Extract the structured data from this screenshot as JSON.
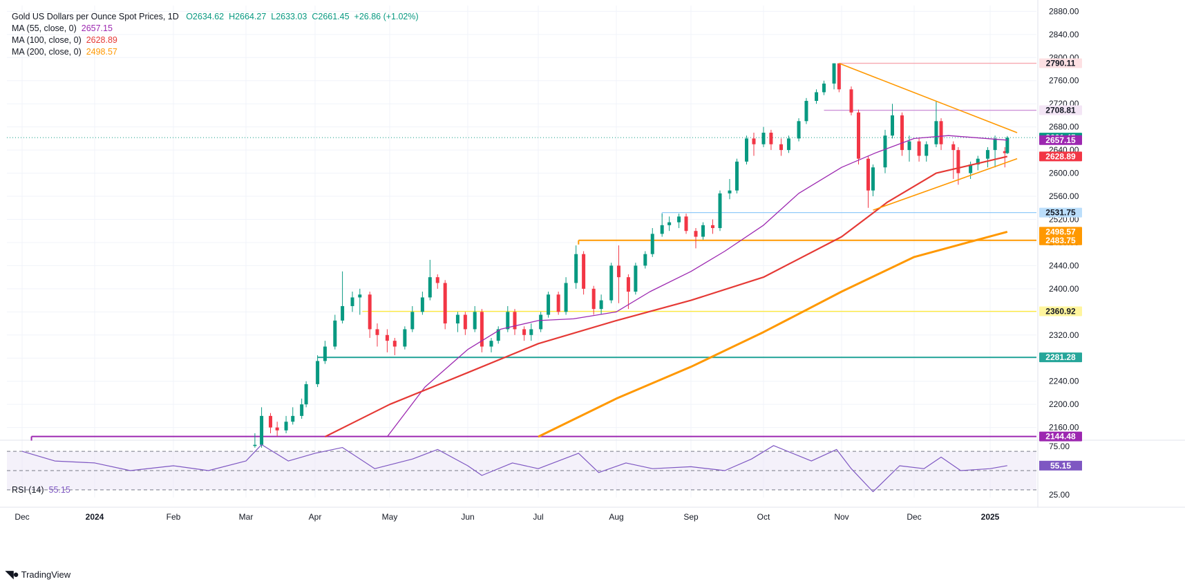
{
  "legend": {
    "symbol": "Gold US Dollars per Ounce Spot Prices, 1D",
    "open": "O2634.62",
    "high": "H2664.27",
    "low": "L2633.03",
    "close": "C2661.45",
    "change": "+26.86 (+1.02%)",
    "ma55_label": "MA (55, close, 0)",
    "ma55_value": "2657.15",
    "ma100_label": "MA (100, close, 0)",
    "ma100_value": "2628.89",
    "ma200_label": "MA (200, close, 0)",
    "ma200_value": "2498.57"
  },
  "rsi_legend": {
    "label": "RSI (14)",
    "value": "55.15"
  },
  "brand": "TradingView",
  "colors": {
    "up": "#089981",
    "down": "#f23645",
    "ma55": "#9c27b0",
    "ma100": "#e53935",
    "ma200": "#ff9800",
    "rsi": "#7e57c2",
    "grid": "#f0f3fa"
  },
  "chart_data": [
    {
      "type": "line",
      "title": "Gold US Dollars per Ounce Spot Prices, 1D",
      "y_ticks": [
        2160,
        2200,
        2240,
        2280,
        2320,
        2360,
        2400,
        2440,
        2480,
        2520,
        2560,
        2600,
        2640,
        2680,
        2720,
        2760,
        2800,
        2840,
        2880
      ],
      "ylim": [
        2144,
        2890
      ],
      "x_tick_labels": [
        "Dec",
        "2024",
        "Feb",
        "Mar",
        "Apr",
        "May",
        "Jun",
        "Jul",
        "Aug",
        "Sep",
        "Oct",
        "Nov",
        "Dec",
        "2025"
      ],
      "x_dates": [
        "2023-12-01",
        "2024-01-01",
        "2024-02-01",
        "2024-03-01",
        "2024-04-01",
        "2024-05-01",
        "2024-06-01",
        "2024-07-01",
        "2024-08-01",
        "2024-09-01",
        "2024-10-01",
        "2024-11-01",
        "2024-12-01",
        "2025-01-01"
      ],
      "candles": {
        "x": [
          "2024-03-05",
          "2024-03-08",
          "2024-03-12",
          "2024-03-15",
          "2024-03-19",
          "2024-03-22",
          "2024-03-26",
          "2024-03-28",
          "2024-04-02",
          "2024-04-05",
          "2024-04-09",
          "2024-04-12",
          "2024-04-16",
          "2024-04-19",
          "2024-04-23",
          "2024-04-26",
          "2024-04-30",
          "2024-05-03",
          "2024-05-07",
          "2024-05-10",
          "2024-05-14",
          "2024-05-17",
          "2024-05-20",
          "2024-05-23",
          "2024-05-28",
          "2024-05-31",
          "2024-06-04",
          "2024-06-07",
          "2024-06-11",
          "2024-06-14",
          "2024-06-18",
          "2024-06-21",
          "2024-06-25",
          "2024-06-28",
          "2024-07-02",
          "2024-07-05",
          "2024-07-09",
          "2024-07-12",
          "2024-07-16",
          "2024-07-19",
          "2024-07-23",
          "2024-07-26",
          "2024-07-30",
          "2024-08-02",
          "2024-08-06",
          "2024-08-09",
          "2024-08-13",
          "2024-08-16",
          "2024-08-20",
          "2024-08-23",
          "2024-08-27",
          "2024-08-30",
          "2024-09-03",
          "2024-09-06",
          "2024-09-10",
          "2024-09-13",
          "2024-09-17",
          "2024-09-20",
          "2024-09-24",
          "2024-09-27",
          "2024-10-01",
          "2024-10-04",
          "2024-10-08",
          "2024-10-11",
          "2024-10-15",
          "2024-10-18",
          "2024-10-22",
          "2024-10-25",
          "2024-10-29",
          "2024-10-31",
          "2024-11-05",
          "2024-11-08",
          "2024-11-12",
          "2024-11-14",
          "2024-11-19",
          "2024-11-22",
          "2024-11-26",
          "2024-11-29",
          "2024-12-03",
          "2024-12-06",
          "2024-12-10",
          "2024-12-12",
          "2024-12-17",
          "2024-12-19",
          "2024-12-24",
          "2024-12-27",
          "2024-12-31",
          "2025-01-03",
          "2025-01-07",
          "2025-01-08"
        ],
        "open": [
          2128,
          2130,
          2180,
          2160,
          2155,
          2170,
          2180,
          2200,
          2235,
          2275,
          2300,
          2345,
          2370,
          2385,
          2390,
          2330,
          2320,
          2310,
          2300,
          2330,
          2360,
          2385,
          2420,
          2410,
          2340,
          2355,
          2330,
          2360,
          2300,
          2310,
          2330,
          2360,
          2330,
          2320,
          2330,
          2355,
          2390,
          2360,
          2410,
          2460,
          2400,
          2365,
          2380,
          2440,
          2420,
          2395,
          2440,
          2460,
          2495,
          2510,
          2515,
          2525,
          2500,
          2490,
          2510,
          2505,
          2565,
          2570,
          2620,
          2660,
          2650,
          2670,
          2650,
          2640,
          2660,
          2690,
          2725,
          2740,
          2755,
          2790,
          2745,
          2705,
          2625,
          2570,
          2610,
          2665,
          2700,
          2640,
          2655,
          2630,
          2650,
          2690,
          2650,
          2640,
          2600,
          2615,
          2625,
          2640,
          2638,
          2634.62
        ],
        "close": [
          2130,
          2180,
          2160,
          2155,
          2170,
          2180,
          2200,
          2235,
          2275,
          2300,
          2345,
          2370,
          2385,
          2390,
          2330,
          2320,
          2310,
          2300,
          2330,
          2360,
          2385,
          2420,
          2410,
          2340,
          2355,
          2330,
          2360,
          2300,
          2310,
          2330,
          2360,
          2330,
          2320,
          2330,
          2355,
          2390,
          2360,
          2410,
          2460,
          2400,
          2365,
          2380,
          2440,
          2420,
          2395,
          2440,
          2460,
          2495,
          2510,
          2515,
          2525,
          2500,
          2490,
          2510,
          2505,
          2565,
          2570,
          2620,
          2660,
          2650,
          2670,
          2650,
          2640,
          2660,
          2690,
          2725,
          2740,
          2755,
          2790,
          2745,
          2705,
          2625,
          2570,
          2610,
          2665,
          2700,
          2640,
          2655,
          2630,
          2650,
          2690,
          2650,
          2640,
          2600,
          2615,
          2625,
          2640,
          2660,
          2634.62,
          2661.45
        ],
        "high": [
          2150,
          2195,
          2185,
          2170,
          2180,
          2195,
          2210,
          2240,
          2285,
          2310,
          2355,
          2430,
          2395,
          2400,
          2395,
          2340,
          2330,
          2315,
          2335,
          2370,
          2395,
          2450,
          2425,
          2415,
          2360,
          2360,
          2370,
          2365,
          2315,
          2335,
          2370,
          2365,
          2335,
          2340,
          2360,
          2395,
          2395,
          2420,
          2475,
          2465,
          2405,
          2390,
          2445,
          2475,
          2425,
          2445,
          2465,
          2505,
          2530,
          2525,
          2530,
          2530,
          2505,
          2515,
          2520,
          2570,
          2590,
          2625,
          2665,
          2670,
          2680,
          2675,
          2660,
          2665,
          2695,
          2730,
          2745,
          2760,
          2790,
          2790,
          2750,
          2710,
          2630,
          2615,
          2675,
          2720,
          2705,
          2665,
          2660,
          2655,
          2725,
          2695,
          2655,
          2645,
          2620,
          2630,
          2645,
          2665,
          2645,
          2664.27
        ],
        "low": [
          2125,
          2125,
          2150,
          2145,
          2150,
          2165,
          2175,
          2195,
          2230,
          2270,
          2295,
          2340,
          2360,
          2355,
          2315,
          2300,
          2290,
          2285,
          2295,
          2325,
          2355,
          2380,
          2400,
          2330,
          2325,
          2320,
          2325,
          2290,
          2290,
          2305,
          2325,
          2320,
          2310,
          2310,
          2325,
          2350,
          2355,
          2355,
          2400,
          2390,
          2355,
          2355,
          2375,
          2375,
          2365,
          2390,
          2435,
          2455,
          2490,
          2500,
          2505,
          2495,
          2470,
          2485,
          2495,
          2500,
          2555,
          2565,
          2615,
          2630,
          2645,
          2640,
          2630,
          2635,
          2655,
          2685,
          2720,
          2735,
          2745,
          2740,
          2700,
          2615,
          2540,
          2560,
          2600,
          2660,
          2630,
          2620,
          2620,
          2620,
          2645,
          2640,
          2590,
          2580,
          2590,
          2605,
          2610,
          2610,
          2610,
          2633.03
        ]
      },
      "series": [
        {
          "name": "MA (55, close, 0)",
          "color": "#9c27b0",
          "x": [
            "2024-04-30",
            "2024-05-15",
            "2024-06-01",
            "2024-06-15",
            "2024-07-01",
            "2024-07-15",
            "2024-08-01",
            "2024-08-15",
            "2024-09-01",
            "2024-09-15",
            "2024-10-01",
            "2024-10-15",
            "2024-11-01",
            "2024-11-15",
            "2024-12-01",
            "2024-12-15",
            "2025-01-08"
          ],
          "values": [
            2144,
            2230,
            2295,
            2330,
            2345,
            2348,
            2360,
            2395,
            2430,
            2465,
            2510,
            2565,
            2610,
            2635,
            2660,
            2665,
            2657.15
          ]
        },
        {
          "name": "MA (100, close, 0)",
          "color": "#e53935",
          "x": [
            "2024-04-05",
            "2024-05-01",
            "2024-06-01",
            "2024-07-01",
            "2024-08-01",
            "2024-09-01",
            "2024-10-01",
            "2024-11-01",
            "2024-11-20",
            "2024-12-10",
            "2025-01-08"
          ],
          "values": [
            2144,
            2200,
            2255,
            2305,
            2345,
            2380,
            2420,
            2490,
            2550,
            2600,
            2628.89
          ]
        },
        {
          "name": "MA (200, close, 0)",
          "color": "#ff9800",
          "x": [
            "2024-07-01",
            "2024-08-01",
            "2024-09-01",
            "2024-10-01",
            "2024-11-01",
            "2024-12-01",
            "2025-01-08"
          ],
          "values": [
            2144,
            2210,
            2265,
            2325,
            2395,
            2455,
            2498.57
          ]
        }
      ],
      "horizontal_levels": [
        {
          "value": 2790.11,
          "label": "2790.11",
          "color": "#f7a8b0"
        },
        {
          "value": 2708.81,
          "label": "2708.81",
          "color": "#ce93d8"
        },
        {
          "value": 2531.75,
          "label": "2531.75",
          "color": "#90caf9"
        },
        {
          "value": 2483.75,
          "label": "2483.75",
          "color": "#ff9800"
        },
        {
          "value": 2360.92,
          "label": "2360.92",
          "color": "#ffeb3b"
        },
        {
          "value": 2281.28,
          "label": "2281.28",
          "color": "#26a69a"
        },
        {
          "value": 2144.48,
          "label": "2144.48",
          "color": "#9c27b0"
        }
      ],
      "price_tags": [
        {
          "value": 2661.45,
          "label": "2661.45",
          "color": "#089981"
        },
        {
          "value": 2657.15,
          "label": "2657.15",
          "color": "#9c27b0"
        },
        {
          "value": 2628.89,
          "label": "2628.89",
          "color": "#f23645"
        },
        {
          "value": 2498.57,
          "label": "2498.57",
          "color": "#ff9800"
        }
      ],
      "trendlines": [
        {
          "from": [
            "2024-10-31",
            2790
          ],
          "to": [
            "2025-01-12",
            2670
          ],
          "color": "#ff9800"
        },
        {
          "from": [
            "2024-11-14",
            2536
          ],
          "to": [
            "2025-01-12",
            2625
          ],
          "color": "#ff9800"
        }
      ]
    },
    {
      "type": "line",
      "title": "RSI (14)",
      "y_ticks": [
        25,
        75
      ],
      "ylim": [
        22,
        78
      ],
      "bands": [
        30,
        50,
        70
      ],
      "series": [
        {
          "name": "RSI (14)",
          "color": "#7e57c2",
          "x": [
            "2023-12-01",
            "2023-12-15",
            "2024-01-01",
            "2024-01-15",
            "2024-02-01",
            "2024-02-15",
            "2024-03-01",
            "2024-03-08",
            "2024-03-20",
            "2024-04-01",
            "2024-04-12",
            "2024-04-25",
            "2024-05-10",
            "2024-05-20",
            "2024-06-01",
            "2024-06-07",
            "2024-06-20",
            "2024-07-01",
            "2024-07-17",
            "2024-07-25",
            "2024-08-05",
            "2024-08-16",
            "2024-09-01",
            "2024-09-15",
            "2024-09-26",
            "2024-10-05",
            "2024-10-20",
            "2024-10-30",
            "2024-11-05",
            "2024-11-14",
            "2024-11-25",
            "2024-12-05",
            "2024-12-12",
            "2024-12-20",
            "2025-01-01",
            "2025-01-08"
          ],
          "values": [
            70,
            60,
            58,
            50,
            55,
            50,
            60,
            77,
            60,
            68,
            74,
            52,
            62,
            72,
            55,
            45,
            58,
            52,
            68,
            48,
            58,
            52,
            54,
            50,
            62,
            76,
            60,
            72,
            52,
            28,
            55,
            52,
            64,
            50,
            52,
            55.15
          ]
        }
      ],
      "value_tag": "55.15"
    }
  ]
}
